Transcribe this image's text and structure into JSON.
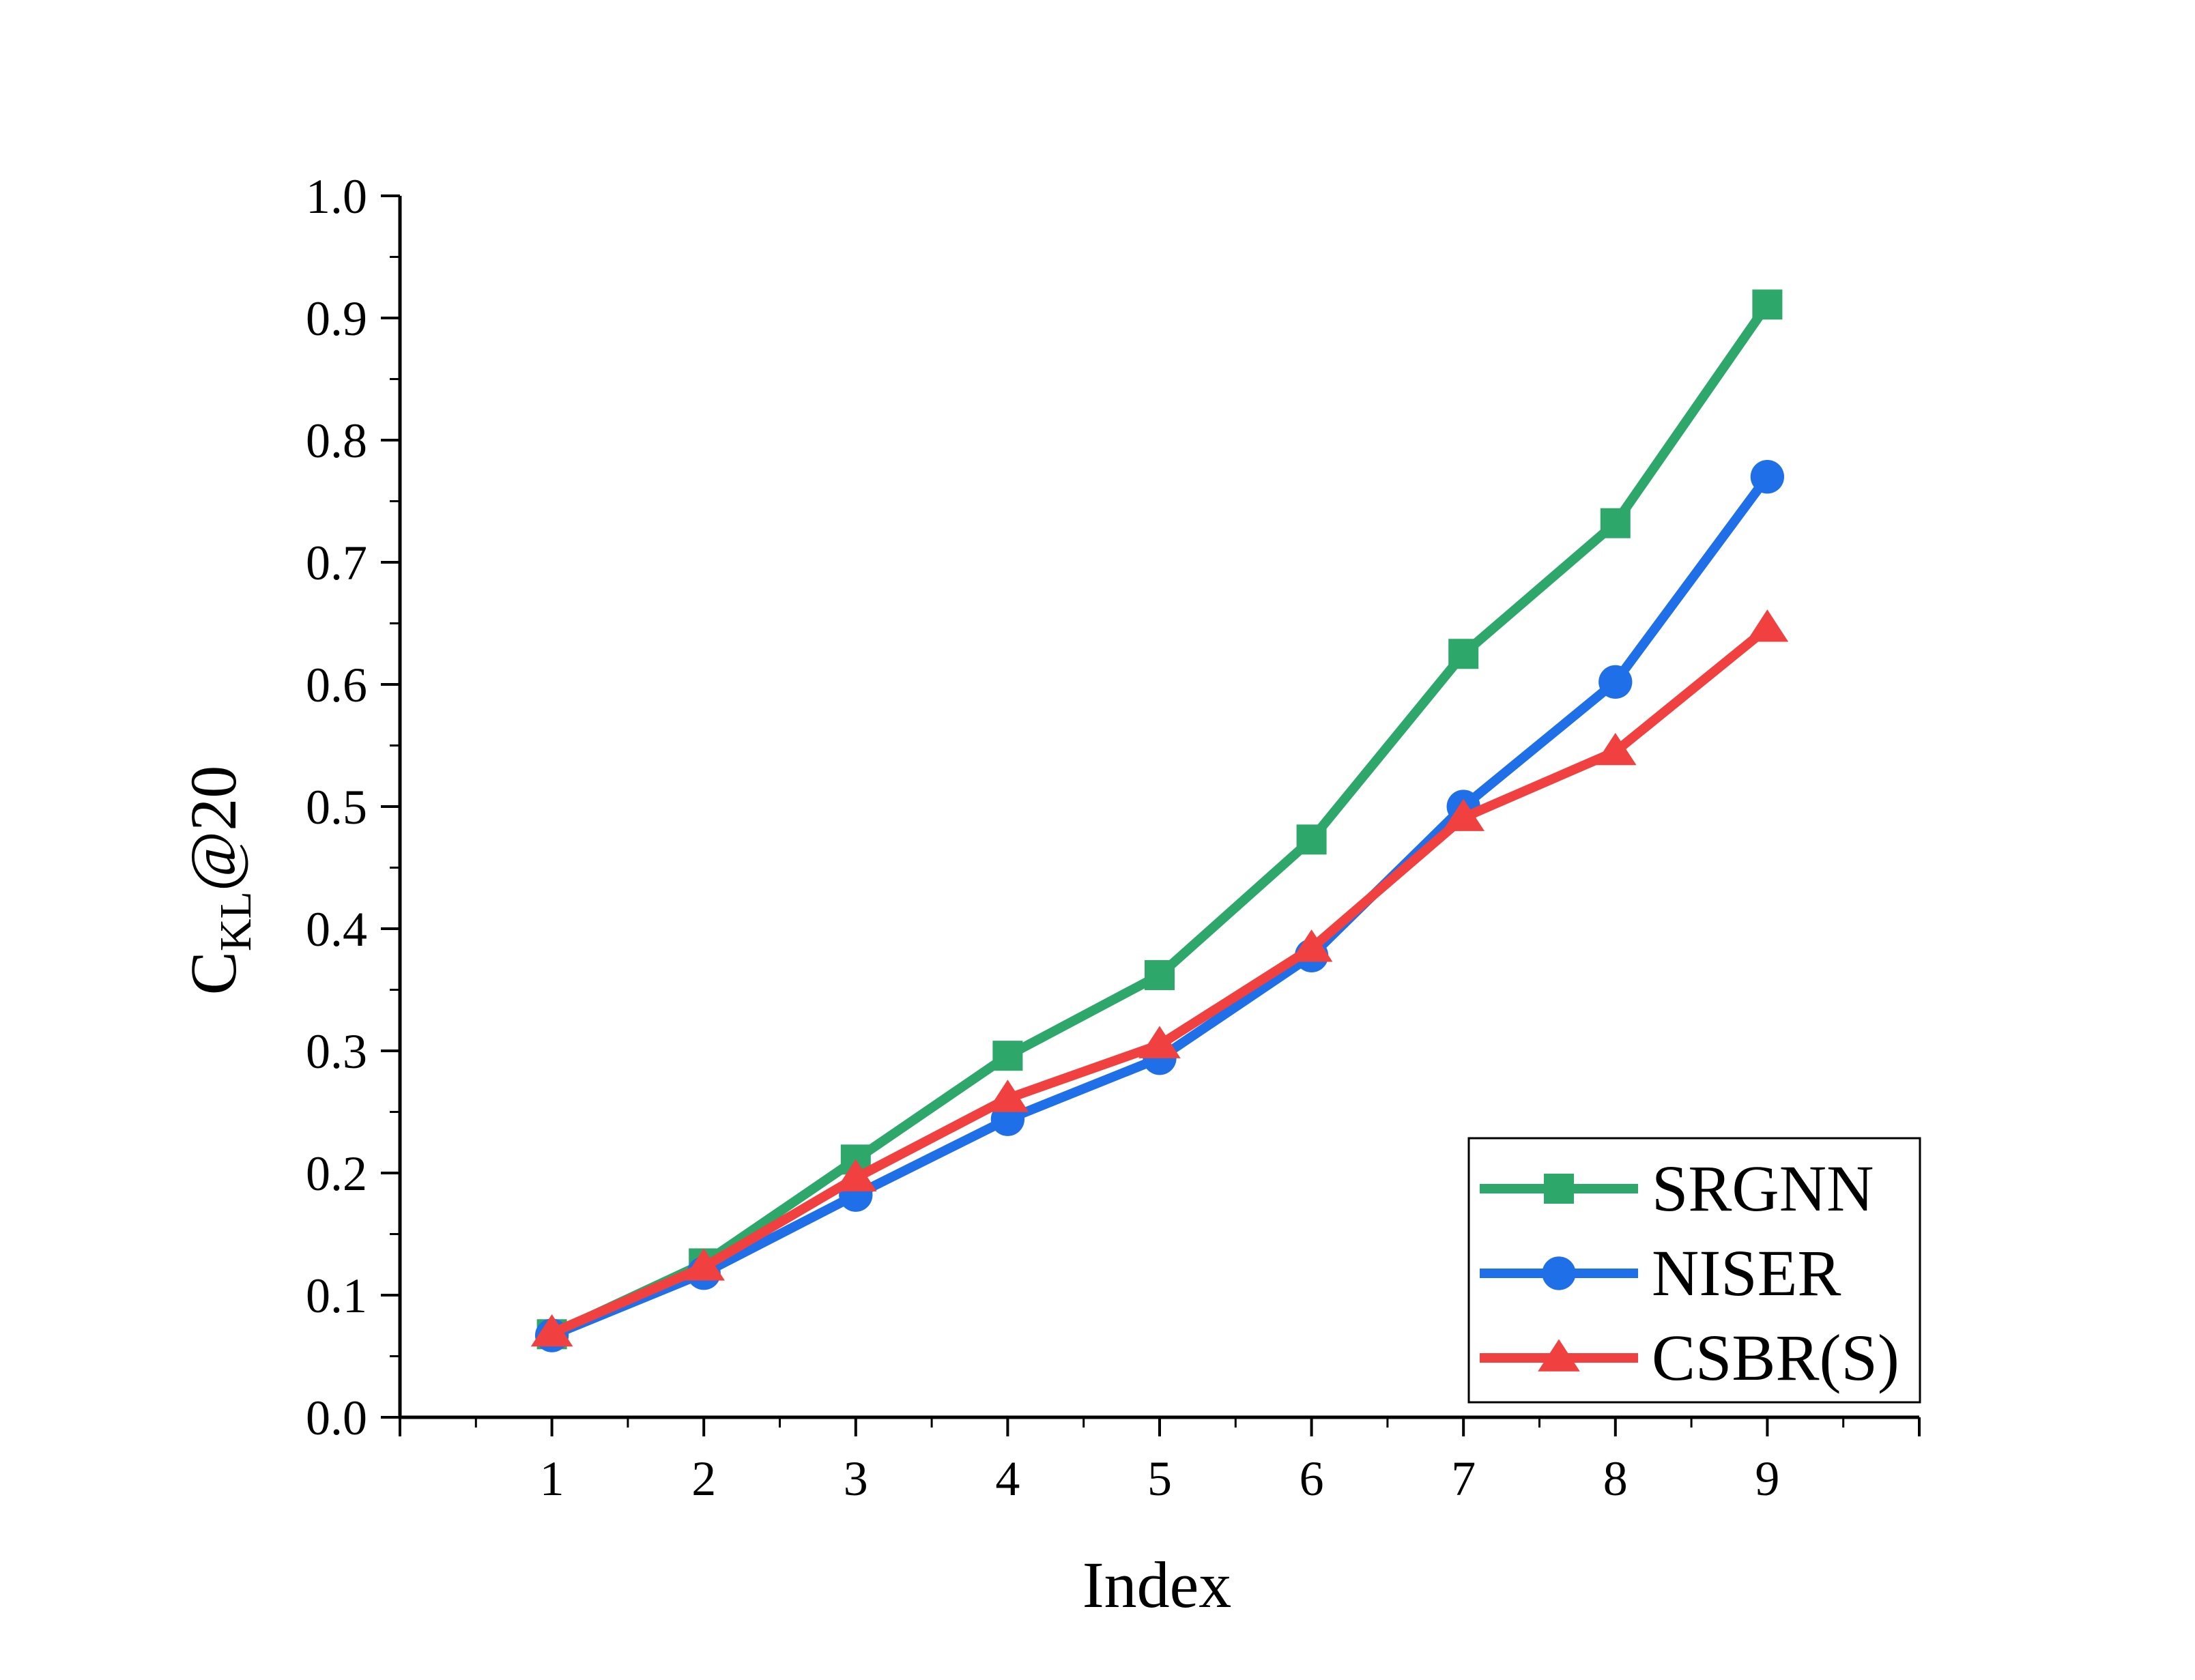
{
  "chart_data": {
    "type": "line",
    "title": "",
    "xlabel": "Index",
    "ylabel": {
      "main": "C",
      "subscript": "KL",
      "suffix": "@20"
    },
    "x": [
      1,
      2,
      3,
      4,
      5,
      6,
      7,
      8,
      9
    ],
    "xlim": [
      0,
      10
    ],
    "ylim": [
      0.0,
      1.0
    ],
    "xticks": [
      "1",
      "2",
      "3",
      "4",
      "5",
      "6",
      "7",
      "8",
      "9"
    ],
    "yticks": [
      "0.0",
      "0.1",
      "0.2",
      "0.3",
      "0.4",
      "0.5",
      "0.6",
      "0.7",
      "0.8",
      "0.9",
      "1.0"
    ],
    "grid": false,
    "legend_position": "bottom-right",
    "series": [
      {
        "name": "SRGNN",
        "marker": "square",
        "color": "#2ea86a",
        "values": [
          0.068,
          0.126,
          0.211,
          0.296,
          0.362,
          0.473,
          0.625,
          0.732,
          0.911
        ]
      },
      {
        "name": "NISER",
        "marker": "circle",
        "color": "#1f6fe8",
        "values": [
          0.067,
          0.118,
          0.182,
          0.244,
          0.294,
          0.378,
          0.5,
          0.602,
          0.77
        ]
      },
      {
        "name": "CSBR(S)",
        "marker": "triangle",
        "color": "#f0403f",
        "values": [
          0.069,
          0.123,
          0.196,
          0.261,
          0.305,
          0.384,
          0.491,
          0.545,
          0.646
        ]
      }
    ]
  }
}
